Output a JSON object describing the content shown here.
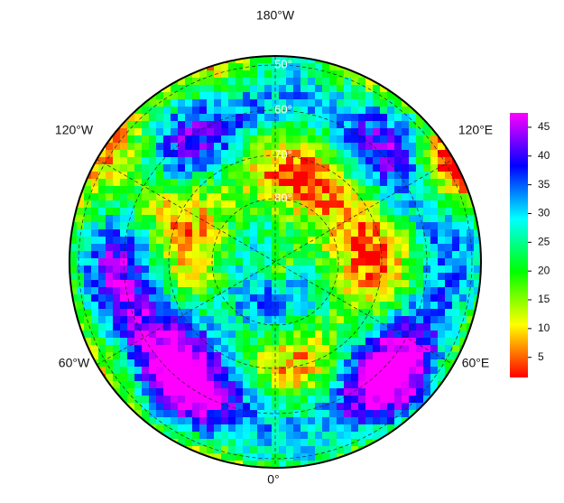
{
  "map": {
    "longitude_labels": [
      "180°W",
      "120°W",
      "120°E",
      "60°W",
      "60°E",
      "0°"
    ],
    "latitude_labels": [
      "50°",
      "60°",
      "70°",
      "80°"
    ]
  },
  "colorbar": {
    "lim": [
      1.5,
      47.5
    ],
    "ticks": [
      5,
      10,
      15,
      20,
      25,
      30,
      35,
      40,
      45
    ]
  }
}
